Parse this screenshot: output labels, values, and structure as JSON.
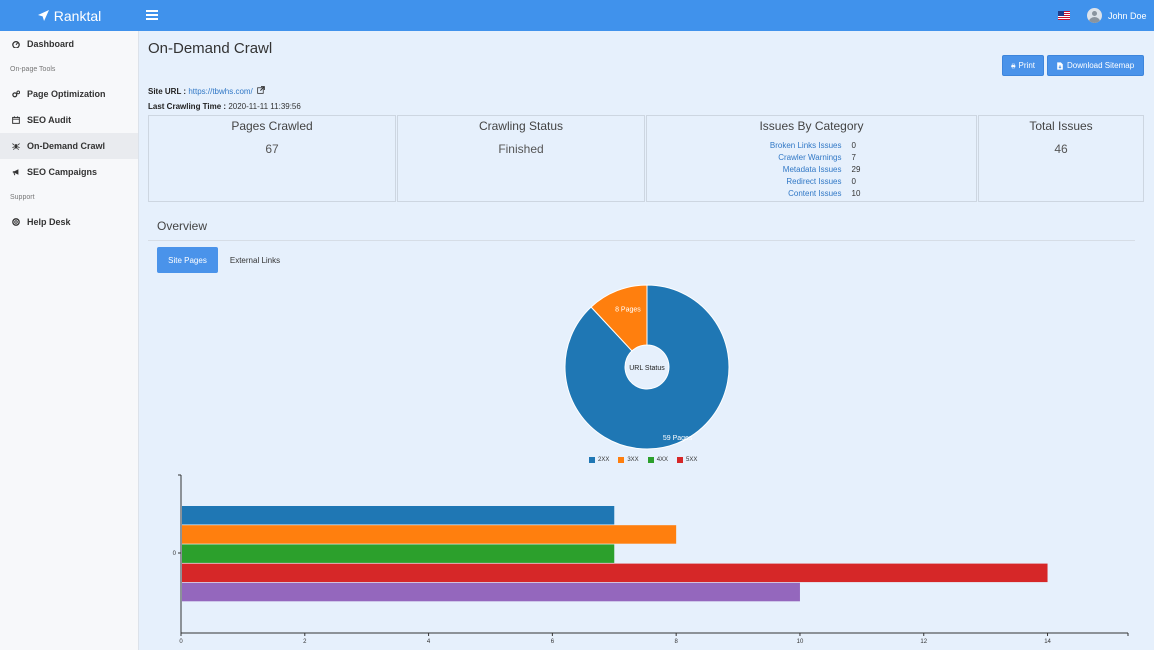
{
  "app": {
    "brand": "Ranktal"
  },
  "header": {
    "user_name": "John Doe"
  },
  "sidebar": {
    "items": [
      {
        "kind": "link",
        "label": "Dashboard",
        "icon": "dashboard-icon"
      },
      {
        "kind": "section",
        "label": "On-page Tools"
      },
      {
        "kind": "link",
        "label": "Page Optimization",
        "icon": "cogs-icon"
      },
      {
        "kind": "link",
        "label": "SEO Audit",
        "icon": "calendar-icon"
      },
      {
        "kind": "link",
        "label": "On-Demand Crawl",
        "icon": "spider-icon",
        "active": true
      },
      {
        "kind": "link",
        "label": "SEO Campaigns",
        "icon": "bullhorn-icon"
      },
      {
        "kind": "section",
        "label": "Support"
      },
      {
        "kind": "link",
        "label": "Help Desk",
        "icon": "life-ring-icon"
      }
    ]
  },
  "page": {
    "title": "On-Demand Crawl",
    "print_label": "Print",
    "sitemap_label": "Download Sitemap",
    "site_url_label": "Site URL :",
    "site_url": "https://tbwhs.com/",
    "last_crawl_label": "Last Crawling Time :",
    "last_crawl_time": "2020-11-11 11:39:56"
  },
  "stats": {
    "pages_crawled_label": "Pages Crawled",
    "pages_crawled": "67",
    "status_label": "Crawling Status",
    "status": "Finished",
    "issues_label": "Issues By Category",
    "categories": [
      {
        "name": "Broken Links Issues",
        "count": "0"
      },
      {
        "name": "Crawler Warnings",
        "count": "7"
      },
      {
        "name": "Metadata Issues",
        "count": "29"
      },
      {
        "name": "Redirect Issues",
        "count": "0"
      },
      {
        "name": "Content Issues",
        "count": "10"
      }
    ],
    "total_label": "Total Issues",
    "total": "46"
  },
  "overview": {
    "title": "Overview",
    "tabs": [
      {
        "label": "Site Pages",
        "active": true
      },
      {
        "label": "External Links",
        "active": false
      }
    ]
  },
  "chart_data": [
    {
      "type": "pie",
      "center_label": "URL Status",
      "slices": [
        {
          "name": "2XX",
          "value": 59,
          "label": "59 Pages",
          "color": "#1f77b4"
        },
        {
          "name": "3XX",
          "value": 8,
          "label": "8 Pages",
          "color": "#ff7f0e"
        },
        {
          "name": "4XX",
          "value": 0,
          "label": "",
          "color": "#2ca02c"
        },
        {
          "name": "5XX",
          "value": 0,
          "label": "",
          "color": "#d62728"
        }
      ]
    },
    {
      "type": "bar",
      "orientation": "horizontal",
      "categories": [
        "0"
      ],
      "series": [
        {
          "values": [
            7
          ],
          "color": "#1f77b4"
        },
        {
          "values": [
            8
          ],
          "color": "#ff7f0e"
        },
        {
          "values": [
            7
          ],
          "color": "#2ca02c"
        },
        {
          "values": [
            14
          ],
          "color": "#d62728"
        },
        {
          "values": [
            10
          ],
          "color": "#9467bd"
        }
      ],
      "xlim": [
        0,
        15.3
      ],
      "xticks": [
        0,
        2,
        4,
        6,
        8,
        10,
        12,
        14
      ]
    }
  ]
}
